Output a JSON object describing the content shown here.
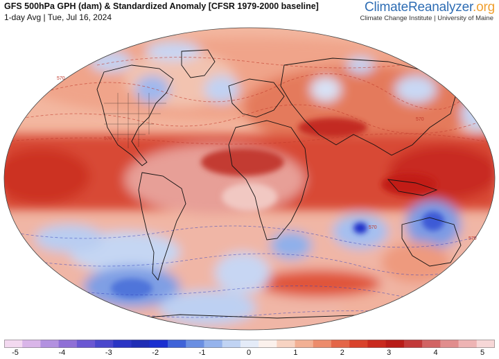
{
  "header": {
    "title": "GFS 500hPa GPH (dam) & Standardized Anomaly [CFSR 1979-2000 baseline]",
    "subtitle": "1-day Avg | Tue, Jul 16, 2024"
  },
  "brand": {
    "name_main": "ClimateReanalyzer",
    "name_suffix": ".org",
    "affiliation": "Climate Change Institute | University of Maine"
  },
  "contour_labels": [
    "570",
    "570",
    "570",
    "570",
    "570"
  ],
  "colorbar": {
    "colors": [
      "#f3d9f0",
      "#d9b5e8",
      "#b391e0",
      "#8f6fd6",
      "#6a57d2",
      "#4a47cc",
      "#2b35c4",
      "#1f2db5",
      "#1a2fd0",
      "#3f63d8",
      "#6a8fe2",
      "#95b3ec",
      "#c0d3f3",
      "#e4ebf8",
      "#fbf1ec",
      "#f7d3c2",
      "#f2b094",
      "#ec8c6c",
      "#e46648",
      "#d9432c",
      "#c92a1e",
      "#b81c18",
      "#c23a3a",
      "#d26464",
      "#e18d8d",
      "#eeb4b4",
      "#f7d7d7"
    ],
    "ticks": [
      "-5",
      "-4",
      "-3",
      "-2",
      "-1",
      "0",
      "1",
      "2",
      "3",
      "4",
      "5"
    ]
  },
  "colors": {
    "warm_strong": "#c8281c",
    "warm_mid": "#e0553a",
    "warm_light": "#f2a688",
    "cool_strong": "#1f3fd0",
    "cool_mid": "#5e84e0",
    "cool_light": "#b7cdf2",
    "brand_blue": "#2e6db4",
    "brand_orange": "#f0a030"
  }
}
